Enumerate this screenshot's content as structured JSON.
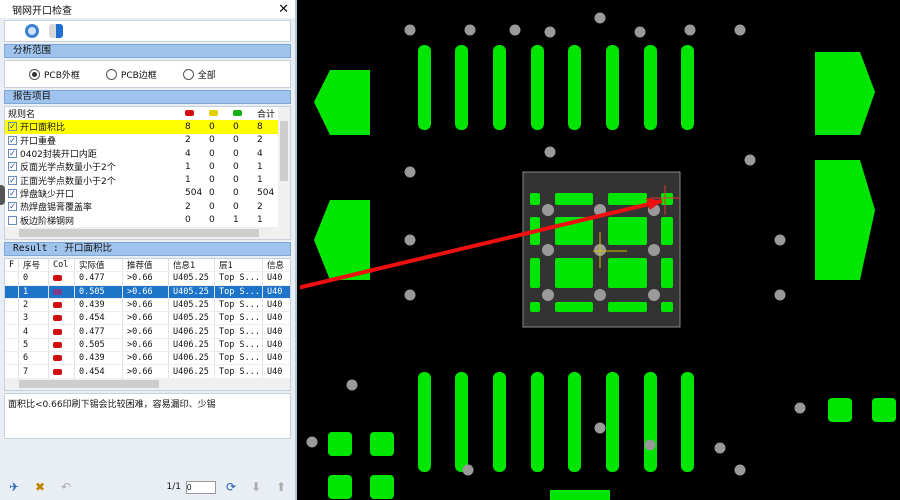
{
  "window": {
    "title": "钢网开口检查",
    "close": "✕"
  },
  "toolbar": {
    "icons": [
      "refresh-icon",
      "exit-icon"
    ]
  },
  "scope": {
    "header": "分析范围",
    "options": [
      {
        "label": "PCB外框",
        "selected": true
      },
      {
        "label": "PCB边框",
        "selected": false
      },
      {
        "label": "全部",
        "selected": false
      }
    ]
  },
  "report": {
    "header": "报告项目",
    "columns": {
      "name": "规则名",
      "total": "合计"
    },
    "colors": {
      "red": "#d01010",
      "yellow": "#e0d000",
      "green": "#18b018"
    },
    "rows": [
      {
        "name": "开口面积比",
        "red": "8",
        "yellow": "0",
        "green": "0",
        "total": "8",
        "checked": true,
        "highlight": true
      },
      {
        "name": "开口重叠",
        "red": "2",
        "yellow": "0",
        "green": "0",
        "total": "2",
        "checked": true
      },
      {
        "name": "0402封装开口内距",
        "red": "4",
        "yellow": "0",
        "green": "0",
        "total": "4",
        "checked": true
      },
      {
        "name": "反面光学点数量小于2个",
        "red": "1",
        "yellow": "0",
        "green": "0",
        "total": "1",
        "checked": true
      },
      {
        "name": "正面光学点数量小于2个",
        "red": "1",
        "yellow": "0",
        "green": "0",
        "total": "1",
        "checked": true
      },
      {
        "name": "焊盘缺少开口",
        "red": "504",
        "yellow": "0",
        "green": "0",
        "total": "504",
        "checked": true
      },
      {
        "name": "热焊盘锡膏覆盖率",
        "red": "2",
        "yellow": "0",
        "green": "0",
        "total": "2",
        "checked": true
      },
      {
        "name": "板边阶梯钢网",
        "red": "0",
        "yellow": "0",
        "green": "1",
        "total": "1",
        "checked": false
      }
    ]
  },
  "result": {
    "header": "Result : 开口面积比",
    "columns": [
      "F",
      "序号",
      "Col",
      "实际值",
      "推荐值",
      "信息1",
      "层1",
      "信息"
    ],
    "rows": [
      {
        "id": "0",
        "actual": "0.477",
        "rec": ">0.66",
        "info": "U405.25",
        "layer": "Top S...",
        "info2": "U40"
      },
      {
        "id": "1",
        "actual": "0.505",
        "rec": ">0.66",
        "info": "U405.25",
        "layer": "Top S...",
        "info2": "U40",
        "selected": true
      },
      {
        "id": "2",
        "actual": "0.439",
        "rec": ">0.66",
        "info": "U405.25",
        "layer": "Top S...",
        "info2": "U40"
      },
      {
        "id": "3",
        "actual": "0.454",
        "rec": ">0.66",
        "info": "U405.25",
        "layer": "Top S...",
        "info2": "U40"
      },
      {
        "id": "4",
        "actual": "0.477",
        "rec": ">0.66",
        "info": "U406.25",
        "layer": "Top S...",
        "info2": "U40"
      },
      {
        "id": "5",
        "actual": "0.505",
        "rec": ">0.66",
        "info": "U406.25",
        "layer": "Top S...",
        "info2": "U40"
      },
      {
        "id": "6",
        "actual": "0.439",
        "rec": ">0.66",
        "info": "U406.25",
        "layer": "Top S...",
        "info2": "U40"
      },
      {
        "id": "7",
        "actual": "0.454",
        "rec": ">0.66",
        "info": "U406.25",
        "layer": "Top S...",
        "info2": "U40"
      }
    ]
  },
  "description": "面积比<0.66印刷下锡会比较困难，容易漏印、少锡",
  "pager": {
    "page": "1/1",
    "value": "0"
  }
}
